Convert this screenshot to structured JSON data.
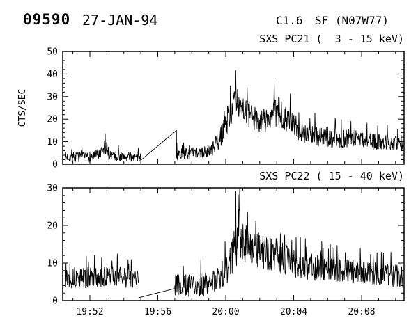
{
  "header": {
    "event_number": "09590",
    "date": "27-JAN-94",
    "goes_class": "C1.6",
    "flare_info": "SF (N07W77)"
  },
  "chart_data": [
    {
      "type": "line",
      "title": "SXS PC21 (  3 - 15 keV)",
      "ylabel": "CTS/SEC",
      "ylim": [
        0,
        50
      ],
      "yticks": [
        0,
        10,
        20,
        30,
        40,
        50
      ],
      "y_minor_step": 2,
      "xlim": [
        0.4,
        20.5
      ],
      "x_reference": "minutes after 19:50 UT",
      "xticks": [
        {
          "t": 2,
          "label": "19:52"
        },
        {
          "t": 6,
          "label": "19:56"
        },
        {
          "t": 10,
          "label": "20:00"
        },
        {
          "t": 14,
          "label": "20:04"
        },
        {
          "t": 18,
          "label": "20:08"
        }
      ],
      "x_minor_step": 1,
      "show_x_labels": false,
      "segments": [
        {
          "kind": "noisy",
          "range": [
            0.55,
            5.0
          ],
          "envelope": [
            [
              0.55,
              3.2,
              2.2
            ],
            [
              1.6,
              3.2,
              2.2
            ],
            [
              2.3,
              3.6,
              2.4
            ],
            [
              2.75,
              5,
              3
            ],
            [
              2.9,
              9,
              6
            ],
            [
              3.05,
              5,
              3
            ],
            [
              3.6,
              3.5,
              2.2
            ],
            [
              5.0,
              3,
              2
            ]
          ]
        },
        {
          "kind": "noisy",
          "range": [
            7.1,
            20.45
          ],
          "lead": [
            [
              5.0,
              1.8
            ],
            [
              7.1,
              15
            ]
          ],
          "envelope": [
            [
              7.1,
              4.5,
              2.5
            ],
            [
              8.6,
              5,
              2.6
            ],
            [
              9.2,
              6.5,
              3
            ],
            [
              9.7,
              12,
              4.5
            ],
            [
              10.1,
              20,
              6
            ],
            [
              10.5,
              27,
              7
            ],
            [
              10.9,
              27,
              7
            ],
            [
              11.3,
              22,
              6
            ],
            [
              11.9,
              19,
              5.5
            ],
            [
              12.5,
              20,
              6
            ],
            [
              13.1,
              23,
              7
            ],
            [
              13.5,
              21,
              6
            ],
            [
              14.2,
              16,
              5
            ],
            [
              15.0,
              13,
              4.5
            ],
            [
              16.0,
              12,
              4.5
            ],
            [
              16.8,
              11,
              4
            ],
            [
              17.6,
              12,
              4
            ],
            [
              18.6,
              10,
              3.5
            ],
            [
              19.5,
              10,
              3.5
            ],
            [
              20.45,
              8.5,
              3
            ]
          ]
        }
      ]
    },
    {
      "type": "line",
      "title": "SXS PC22 ( 15 - 40 keV)",
      "ylabel": "",
      "ylim": [
        0,
        30
      ],
      "yticks": [
        0,
        10,
        20,
        30
      ],
      "y_minor_step": 2,
      "xlim": [
        0.4,
        20.5
      ],
      "x_reference": "minutes after 19:50 UT",
      "xticks": [
        {
          "t": 2,
          "label": "19:52"
        },
        {
          "t": 6,
          "label": "19:56"
        },
        {
          "t": 10,
          "label": "20:00"
        },
        {
          "t": 14,
          "label": "20:04"
        },
        {
          "t": 18,
          "label": "20:08"
        }
      ],
      "x_minor_step": 1,
      "show_x_labels": true,
      "segments": [
        {
          "kind": "noisy",
          "range": [
            0.55,
            4.9
          ],
          "envelope": [
            [
              0.55,
              6,
              2.8
            ],
            [
              2.0,
              6,
              2.8
            ],
            [
              3.5,
              6.5,
              2.8
            ],
            [
              4.9,
              5.5,
              2.5
            ]
          ]
        },
        {
          "kind": "noisy",
          "range": [
            7.0,
            20.45
          ],
          "lead": [
            [
              4.9,
              0.8
            ],
            [
              7.0,
              3.2
            ]
          ],
          "envelope": [
            [
              7.0,
              4,
              3
            ],
            [
              8.5,
              4,
              3.2
            ],
            [
              9.3,
              5,
              3.2
            ],
            [
              9.9,
              7,
              4
            ],
            [
              10.4,
              13,
              6
            ],
            [
              10.8,
              18,
              7
            ],
            [
              11.1,
              16,
              6
            ],
            [
              11.6,
              14,
              5
            ],
            [
              12.2,
              13,
              4.5
            ],
            [
              13.0,
              12,
              4.5
            ],
            [
              14.0,
              10,
              4
            ],
            [
              15.0,
              9,
              3.5
            ],
            [
              16.2,
              8,
              3.2
            ],
            [
              17.2,
              8,
              3.2
            ],
            [
              18.2,
              7.5,
              3
            ],
            [
              19.2,
              7,
              3
            ],
            [
              20.45,
              6.5,
              3
            ]
          ]
        }
      ]
    }
  ]
}
